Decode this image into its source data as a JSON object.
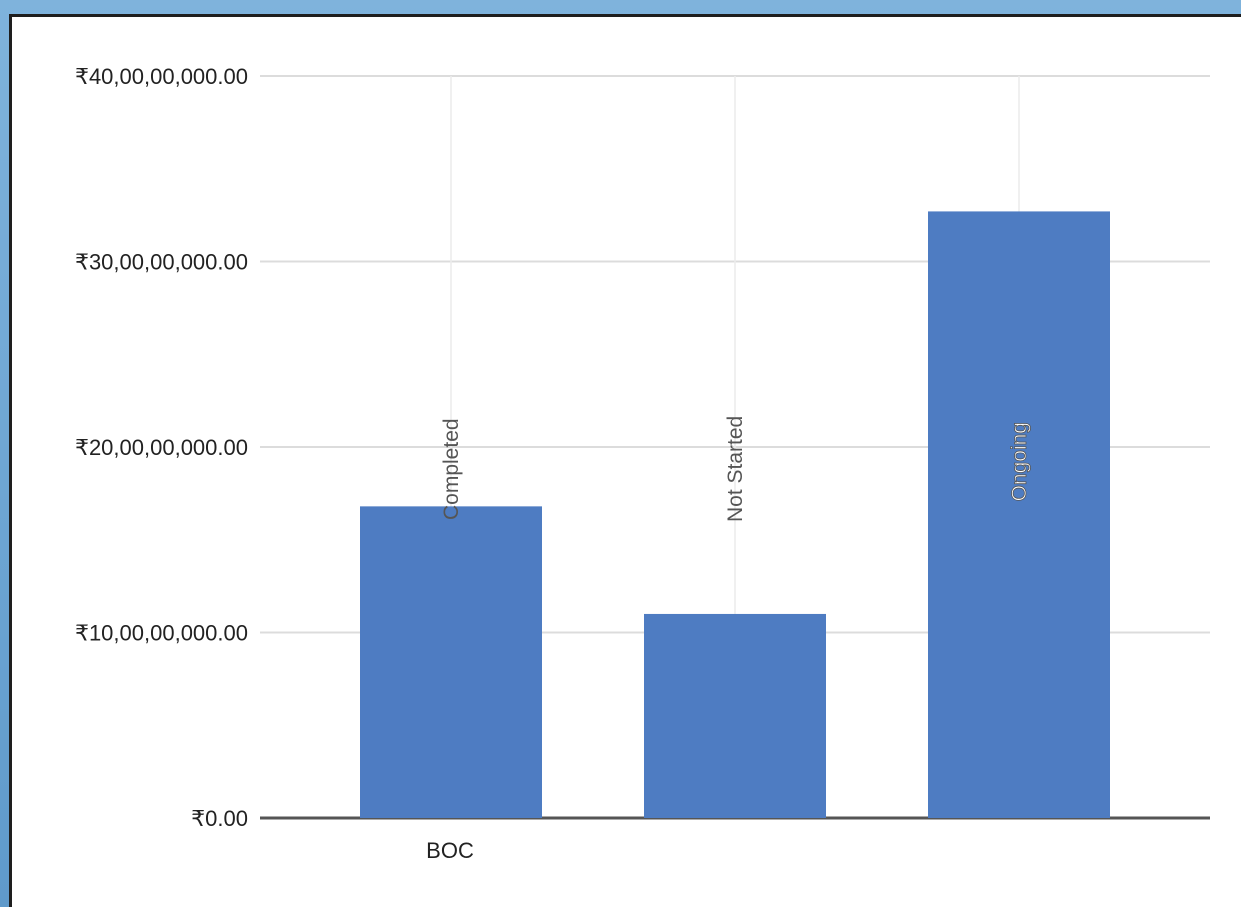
{
  "chart_data": {
    "type": "bar",
    "categories": [
      "BOC"
    ],
    "series": [
      {
        "name": "Completed",
        "values": [
          168000000
        ]
      },
      {
        "name": "Not Started",
        "values": [
          110000000
        ]
      },
      {
        "name": "Ongoing",
        "values": [
          327000000
        ]
      }
    ],
    "ylim": [
      0,
      400000000
    ],
    "yticks": [
      0,
      100000000,
      200000000,
      300000000,
      400000000
    ],
    "ytick_labels": [
      "₹0.00",
      "₹10,00,00,000.00",
      "₹20,00,00,000.00",
      "₹30,00,00,000.00",
      "₹40,00,00,000.00"
    ],
    "bar_color": "#4e7cc2",
    "grid": true,
    "legend": "none",
    "data_labels": "rotated inside bars"
  }
}
